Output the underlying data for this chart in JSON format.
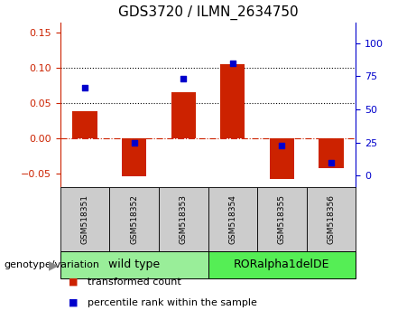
{
  "title": "GDS3720 / ILMN_2634750",
  "samples": [
    "GSM518351",
    "GSM518352",
    "GSM518353",
    "GSM518354",
    "GSM518355",
    "GSM518356"
  ],
  "transformed_count": [
    0.038,
    -0.055,
    0.065,
    0.105,
    -0.058,
    -0.043
  ],
  "percentile_rank_pct": [
    66,
    25,
    73,
    85,
    23,
    10
  ],
  "bar_color": "#cc2200",
  "dot_color": "#0000cc",
  "ylim_left": [
    -0.07,
    0.165
  ],
  "ylim_right": [
    -8.75,
    115.5
  ],
  "yticks_left": [
    -0.05,
    0,
    0.05,
    0.1,
    0.15
  ],
  "yticks_right": [
    0,
    25,
    50,
    75,
    100
  ],
  "hlines": [
    0.0,
    0.05,
    0.1
  ],
  "hline_styles": [
    "dashdot",
    "dotted",
    "dotted"
  ],
  "hline_colors": [
    "#cc2200",
    "black",
    "black"
  ],
  "groups": [
    {
      "label": "wild type",
      "indices": [
        0,
        1,
        2
      ],
      "color": "#99ee99"
    },
    {
      "label": "RORalpha1delDE",
      "indices": [
        3,
        4,
        5
      ],
      "color": "#55ee55"
    }
  ],
  "genotype_label": "genotype/variation",
  "legend_items": [
    {
      "color": "#cc2200",
      "label": "transformed count"
    },
    {
      "color": "#0000cc",
      "label": "percentile rank within the sample"
    }
  ],
  "bar_width": 0.5,
  "title_fontsize": 11,
  "tick_fontsize": 8,
  "sample_fontsize": 6.5,
  "group_fontsize": 9,
  "legend_fontsize": 8,
  "genotype_fontsize": 8,
  "cell_color": "#cccccc",
  "background_color": "#ffffff"
}
